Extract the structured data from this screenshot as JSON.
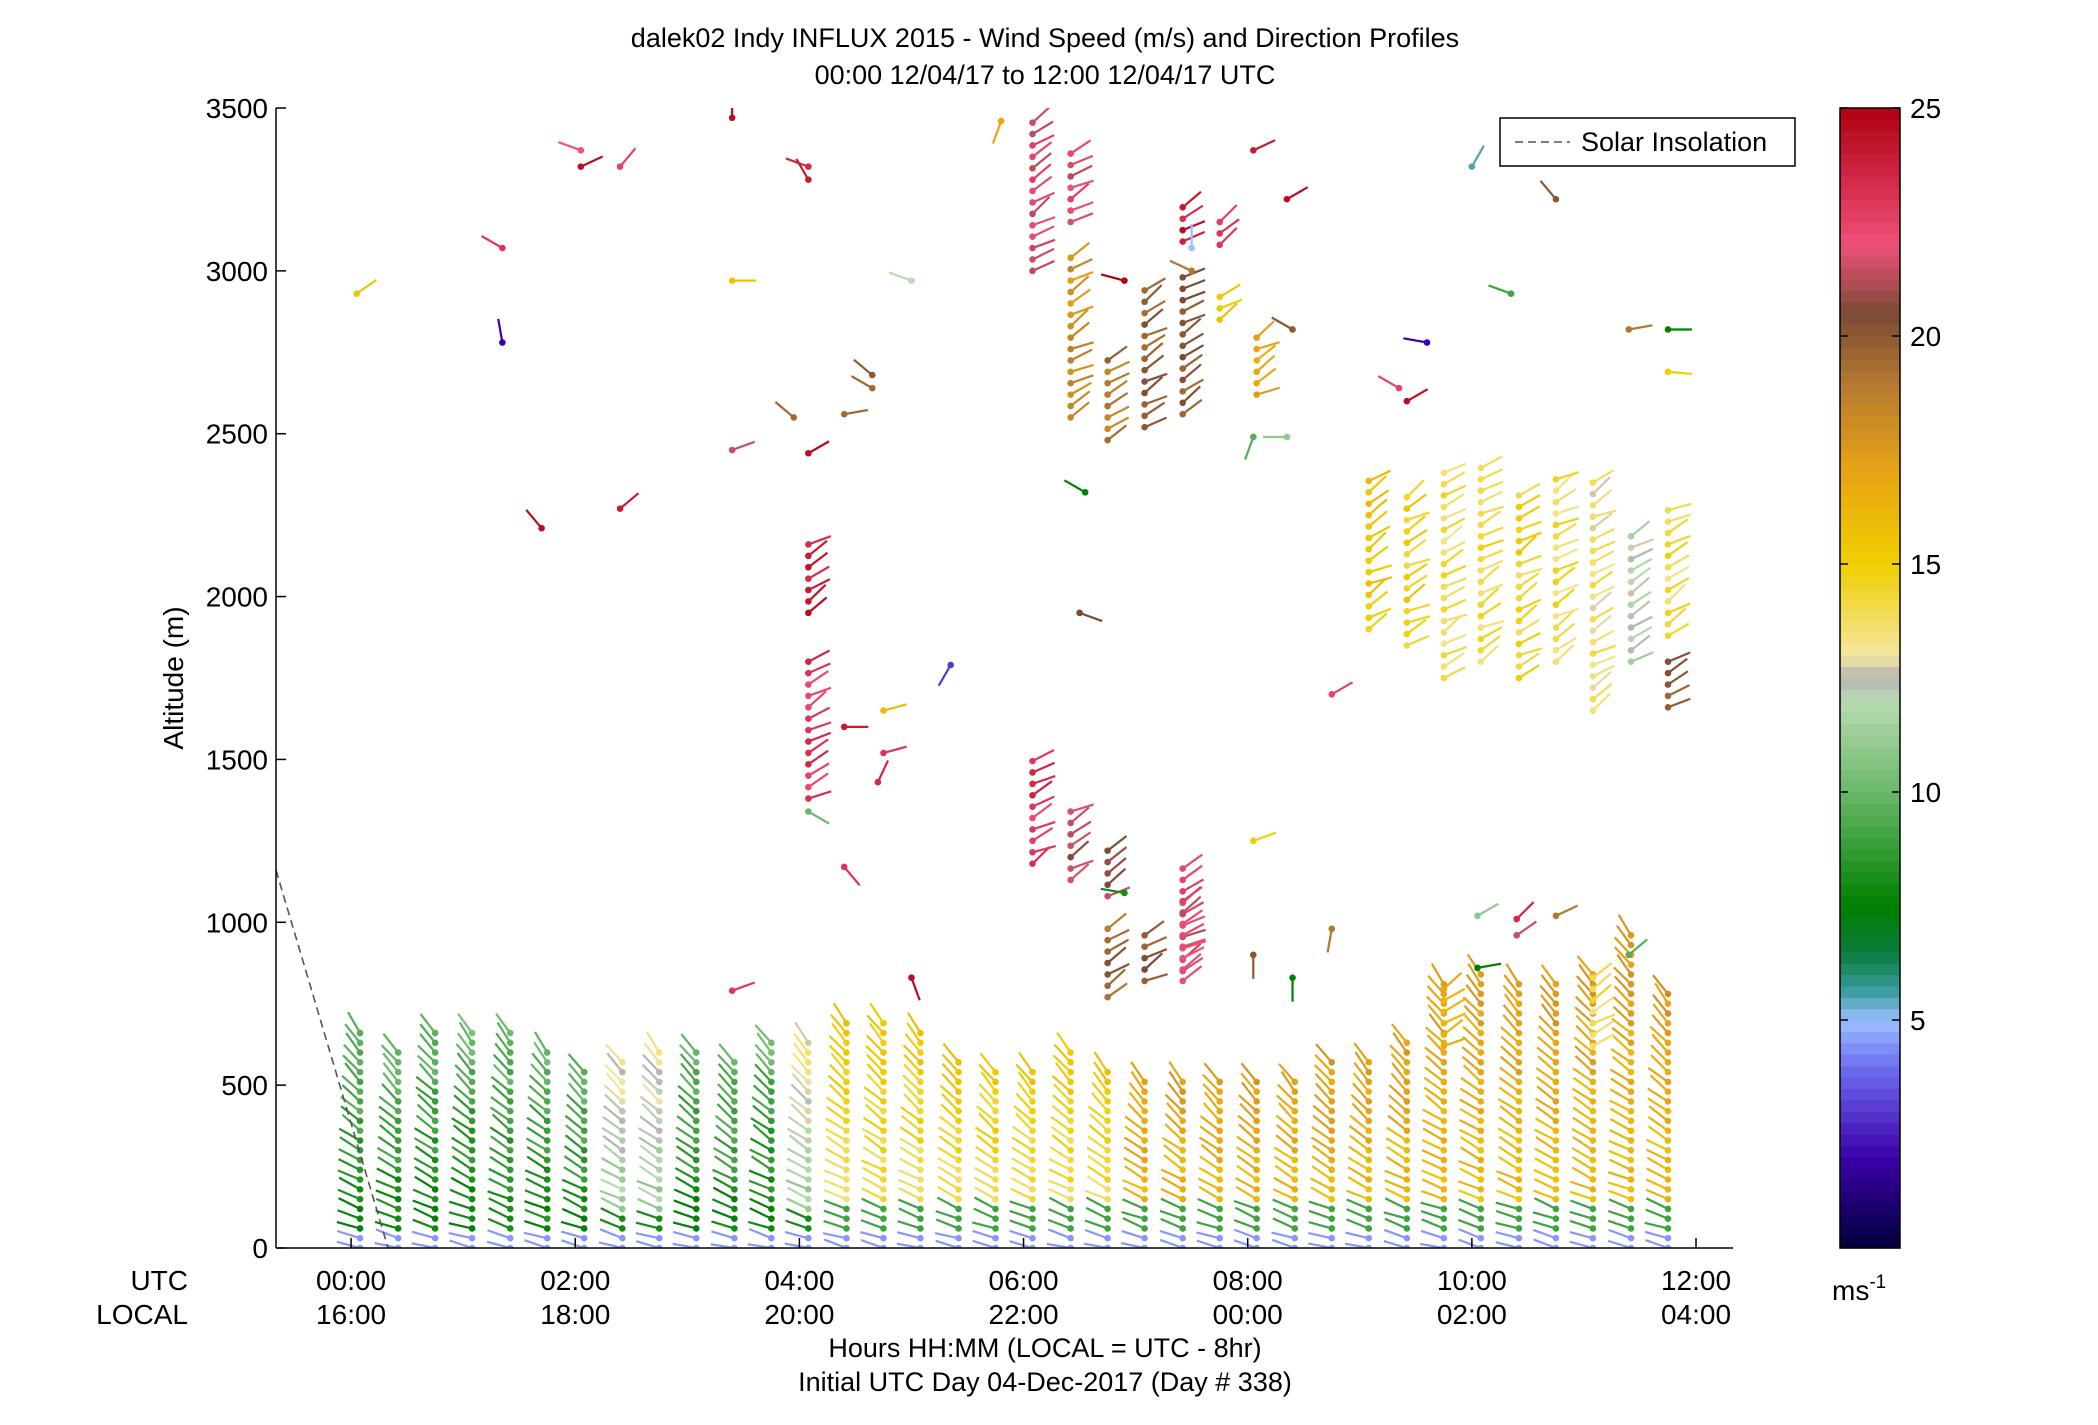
{
  "chart_data": {
    "type": "scatter",
    "title": "dalek02 Indy INFLUX 2015 - Wind Speed (m/s) and Direction Profiles",
    "subtitle": "00:00 12/04/17 to 12:00 12/04/17  UTC",
    "ylabel": "Altitude (m)",
    "xlabel": "Hours HH:MM  (LOCAL = UTC - 8hr)",
    "xlabel2": "Initial UTC Day 04-Dec-2017 (Day # 338)",
    "ylim": [
      0,
      3500
    ],
    "xlim": [
      -0.67,
      12.33
    ],
    "yticks": [
      0,
      500,
      1000,
      1500,
      2000,
      2500,
      3000,
      3500
    ],
    "x_row_labels": {
      "utc": "UTC",
      "local": "LOCAL"
    },
    "xticks": [
      {
        "x": 0,
        "utc": "00:00",
        "local": "16:00"
      },
      {
        "x": 2,
        "utc": "02:00",
        "local": "18:00"
      },
      {
        "x": 4,
        "utc": "04:00",
        "local": "20:00"
      },
      {
        "x": 6,
        "utc": "06:00",
        "local": "22:00"
      },
      {
        "x": 8,
        "utc": "08:00",
        "local": "00:00"
      },
      {
        "x": 10,
        "utc": "10:00",
        "local": "02:00"
      },
      {
        "x": 12,
        "utc": "12:00",
        "local": "04:00"
      }
    ],
    "legend": {
      "label": "Solar Insolation",
      "placement": "top-right"
    },
    "colorbar": {
      "unit_label": "ms",
      "unit_exp": "-1",
      "range": [
        0,
        25
      ],
      "ticks": [
        5,
        10,
        15,
        20,
        25
      ],
      "stops": [
        {
          "v": 0,
          "c": "#00003a"
        },
        {
          "v": 2,
          "c": "#3c00aa"
        },
        {
          "v": 4,
          "c": "#6f6ff0"
        },
        {
          "v": 5,
          "c": "#9cc0ff"
        },
        {
          "v": 5.6,
          "c": "#3d9fa5"
        },
        {
          "v": 6.5,
          "c": "#0a7a3a"
        },
        {
          "v": 7.5,
          "c": "#008000"
        },
        {
          "v": 10,
          "c": "#6ab86a"
        },
        {
          "v": 12,
          "c": "#b8dab0"
        },
        {
          "v": 12.5,
          "c": "#b4b4b4"
        },
        {
          "v": 13,
          "c": "#f4e6a0"
        },
        {
          "v": 15,
          "c": "#f0cf00"
        },
        {
          "v": 17,
          "c": "#e9a514"
        },
        {
          "v": 19,
          "c": "#b37830"
        },
        {
          "v": 20.5,
          "c": "#7a4a35"
        },
        {
          "v": 22,
          "c": "#f0507a"
        },
        {
          "v": 25,
          "c": "#b00010"
        }
      ]
    },
    "solar_insolation": {
      "x": [
        -0.67,
        0.33
      ],
      "y": [
        1160,
        0
      ]
    },
    "profiles_low": [
      {
        "x": 0.08,
        "top": 660,
        "wind": "green"
      },
      {
        "x": 0.42,
        "top": 620,
        "wind": "green"
      },
      {
        "x": 0.75,
        "top": 660,
        "wind": "green"
      },
      {
        "x": 1.08,
        "top": 660,
        "wind": "green"
      },
      {
        "x": 1.42,
        "top": 660,
        "wind": "green"
      },
      {
        "x": 1.75,
        "top": 620,
        "wind": "green"
      },
      {
        "x": 2.08,
        "top": 560,
        "wind": "green"
      },
      {
        "x": 2.42,
        "top": 590,
        "wind": "mixed"
      },
      {
        "x": 2.75,
        "top": 620,
        "wind": "mixed"
      },
      {
        "x": 3.08,
        "top": 620,
        "wind": "green"
      },
      {
        "x": 3.42,
        "top": 590,
        "wind": "green"
      },
      {
        "x": 3.75,
        "top": 650,
        "wind": "green"
      },
      {
        "x": 4.08,
        "top": 650,
        "wind": "mixed"
      },
      {
        "x": 4.42,
        "top": 690,
        "wind": "yellow"
      },
      {
        "x": 4.75,
        "top": 690,
        "wind": "yellow"
      },
      {
        "x": 5.08,
        "top": 660,
        "wind": "yellow"
      },
      {
        "x": 5.42,
        "top": 590,
        "wind": "yellow"
      },
      {
        "x": 5.75,
        "top": 560,
        "wind": "yellow"
      },
      {
        "x": 6.08,
        "top": 560,
        "wind": "yellow"
      },
      {
        "x": 6.42,
        "top": 620,
        "wind": "yellow"
      },
      {
        "x": 6.75,
        "top": 560,
        "wind": "yellow"
      },
      {
        "x": 7.08,
        "top": 530,
        "wind": "orange"
      },
      {
        "x": 7.42,
        "top": 530,
        "wind": "orange"
      },
      {
        "x": 7.75,
        "top": 530,
        "wind": "orange"
      },
      {
        "x": 8.08,
        "top": 530,
        "wind": "orange"
      },
      {
        "x": 8.42,
        "top": 530,
        "wind": "orange"
      },
      {
        "x": 8.75,
        "top": 590,
        "wind": "orange"
      },
      {
        "x": 9.08,
        "top": 590,
        "wind": "orange"
      },
      {
        "x": 9.42,
        "top": 650,
        "wind": "orange"
      },
      {
        "x": 9.75,
        "top": 820,
        "wind": "orange"
      },
      {
        "x": 10.08,
        "top": 850,
        "wind": "orange"
      },
      {
        "x": 10.42,
        "top": 820,
        "wind": "orange"
      },
      {
        "x": 10.75,
        "top": 820,
        "wind": "orange"
      },
      {
        "x": 11.08,
        "top": 850,
        "wind": "orange"
      },
      {
        "x": 11.42,
        "top": 970,
        "wind": "orange"
      },
      {
        "x": 11.75,
        "top": 790,
        "wind": "orange"
      }
    ],
    "profiles_upper": [
      {
        "x": 4.08,
        "bottom": 1950,
        "top": 2180,
        "speed": 24
      },
      {
        "x": 4.08,
        "bottom": 1380,
        "top": 1830,
        "speed": 23
      },
      {
        "x": 6.08,
        "bottom": 1180,
        "top": 1520,
        "speed": 23
      },
      {
        "x": 6.42,
        "bottom": 1130,
        "top": 1340,
        "speed": 21
      },
      {
        "x": 6.75,
        "bottom": 1080,
        "top": 1250,
        "speed": 21
      },
      {
        "x": 7.42,
        "bottom": 850,
        "top": 1180,
        "speed": 22
      },
      {
        "x": 6.08,
        "bottom": 3000,
        "top": 3480,
        "speed": 22
      },
      {
        "x": 6.42,
        "bottom": 3150,
        "top": 3370,
        "speed": 22
      },
      {
        "x": 6.42,
        "bottom": 2550,
        "top": 3070,
        "speed": 18
      },
      {
        "x": 6.75,
        "bottom": 2480,
        "top": 2750,
        "speed": 19
      },
      {
        "x": 7.08,
        "bottom": 2520,
        "top": 2940,
        "speed": 20
      },
      {
        "x": 7.42,
        "bottom": 2560,
        "top": 2980,
        "speed": 20
      },
      {
        "x": 7.42,
        "bottom": 3090,
        "top": 3220,
        "speed": 24
      },
      {
        "x": 7.75,
        "bottom": 2850,
        "top": 2930,
        "speed": 15
      },
      {
        "x": 7.75,
        "bottom": 3080,
        "top": 3160,
        "speed": 23
      },
      {
        "x": 8.08,
        "bottom": 2620,
        "top": 2820,
        "speed": 17
      },
      {
        "x": 9.08,
        "bottom": 1900,
        "top": 2380,
        "speed": 15.5
      },
      {
        "x": 9.42,
        "bottom": 1850,
        "top": 2330,
        "speed": 15
      },
      {
        "x": 9.75,
        "bottom": 1750,
        "top": 2400,
        "speed": 14
      },
      {
        "x": 10.08,
        "bottom": 1800,
        "top": 2400,
        "speed": 14
      },
      {
        "x": 10.42,
        "bottom": 1750,
        "top": 2330,
        "speed": 14.5
      },
      {
        "x": 10.75,
        "bottom": 1800,
        "top": 2360,
        "speed": 14
      },
      {
        "x": 11.08,
        "bottom": 1650,
        "top": 2380,
        "speed": 13.5
      },
      {
        "x": 11.42,
        "bottom": 1800,
        "top": 2210,
        "speed": 12
      },
      {
        "x": 11.75,
        "bottom": 1880,
        "top": 2270,
        "speed": 14
      },
      {
        "x": 11.75,
        "bottom": 1660,
        "top": 1830,
        "speed": 20
      },
      {
        "x": 6.75,
        "bottom": 770,
        "top": 1000,
        "speed": 19.5
      },
      {
        "x": 7.08,
        "bottom": 820,
        "top": 980,
        "speed": 20
      },
      {
        "x": 7.42,
        "bottom": 820,
        "top": 1080,
        "speed": 22
      },
      {
        "x": 9.75,
        "bottom": 620,
        "top": 800,
        "speed": 16
      },
      {
        "x": 11.08,
        "bottom": 620,
        "top": 860,
        "speed": 14
      }
    ],
    "scattered_points": [
      {
        "x": 0.05,
        "y": 2930,
        "speed": 15.5,
        "dir": 55
      },
      {
        "x": 1.35,
        "y": 3070,
        "speed": 23,
        "dir": -60
      },
      {
        "x": 1.35,
        "y": 2780,
        "speed": 2,
        "dir": -10
      },
      {
        "x": 1.7,
        "y": 2210,
        "speed": 24.5,
        "dir": -40
      },
      {
        "x": 2.05,
        "y": 3320,
        "speed": 24.5,
        "dir": 65
      },
      {
        "x": 2.05,
        "y": 3370,
        "speed": 22,
        "dir": -70
      },
      {
        "x": 2.4,
        "y": 3320,
        "speed": 22.5,
        "dir": 40
      },
      {
        "x": 2.4,
        "y": 2270,
        "speed": 24,
        "dir": 50
      },
      {
        "x": 3.4,
        "y": 2970,
        "speed": 15.5,
        "dir": 90
      },
      {
        "x": 3.4,
        "y": 2450,
        "speed": 21.5,
        "dir": 70
      },
      {
        "x": 3.4,
        "y": 3470,
        "speed": 24.5,
        "dir": 0
      },
      {
        "x": 3.4,
        "y": 790,
        "speed": 23,
        "dir": 70
      },
      {
        "x": 4.08,
        "y": 2440,
        "speed": 24.5,
        "dir": 60
      },
      {
        "x": 3.95,
        "y": 2550,
        "speed": 19.5,
        "dir": -50
      },
      {
        "x": 4.08,
        "y": 3320,
        "speed": 23.5,
        "dir": -70
      },
      {
        "x": 4.08,
        "y": 3280,
        "speed": 24,
        "dir": -30
      },
      {
        "x": 4.4,
        "y": 2560,
        "speed": 19.5,
        "dir": 80
      },
      {
        "x": 4.65,
        "y": 2680,
        "speed": 20,
        "dir": -50
      },
      {
        "x": 4.65,
        "y": 2640,
        "speed": 19.5,
        "dir": -60
      },
      {
        "x": 5.0,
        "y": 2970,
        "speed": 12,
        "dir": -70
      },
      {
        "x": 4.08,
        "y": 1340,
        "speed": 10,
        "dir": 120
      },
      {
        "x": 4.4,
        "y": 1170,
        "speed": 23,
        "dir": 140
      },
      {
        "x": 4.4,
        "y": 1600,
        "speed": 24,
        "dir": 90
      },
      {
        "x": 4.75,
        "y": 1650,
        "speed": 16,
        "dir": 75
      },
      {
        "x": 4.75,
        "y": 1520,
        "speed": 23,
        "dir": 75
      },
      {
        "x": 4.7,
        "y": 1430,
        "speed": 23.5,
        "dir": 25
      },
      {
        "x": 5.35,
        "y": 1790,
        "speed": 3,
        "dir": 210
      },
      {
        "x": 5.0,
        "y": 830,
        "speed": 24.5,
        "dir": 160
      },
      {
        "x": 5.8,
        "y": 3460,
        "speed": 17,
        "dir": 200
      },
      {
        "x": 6.5,
        "y": 1950,
        "speed": 20.5,
        "dir": 110
      },
      {
        "x": 6.55,
        "y": 2320,
        "speed": 7.5,
        "dir": -60
      },
      {
        "x": 6.9,
        "y": 2970,
        "speed": 25,
        "dir": -75
      },
      {
        "x": 6.9,
        "y": 1090,
        "speed": 8,
        "dir": -80
      },
      {
        "x": 7.5,
        "y": 3070,
        "speed": 5,
        "dir": 0
      },
      {
        "x": 7.5,
        "y": 3000,
        "speed": 19,
        "dir": -65
      },
      {
        "x": 8.05,
        "y": 3370,
        "speed": 24,
        "dir": 65
      },
      {
        "x": 8.35,
        "y": 3220,
        "speed": 24.5,
        "dir": 60
      },
      {
        "x": 8.05,
        "y": 2490,
        "speed": 9.5,
        "dir": -160
      },
      {
        "x": 8.35,
        "y": 2490,
        "speed": 11,
        "dir": -90
      },
      {
        "x": 8.4,
        "y": 2820,
        "speed": 20,
        "dir": -60
      },
      {
        "x": 8.05,
        "y": 1250,
        "speed": 15,
        "dir": 70
      },
      {
        "x": 8.05,
        "y": 900,
        "speed": 20,
        "dir": 180
      },
      {
        "x": 8.4,
        "y": 830,
        "speed": 7.5,
        "dir": -180
      },
      {
        "x": 8.75,
        "y": 980,
        "speed": 19,
        "dir": -170
      },
      {
        "x": 8.75,
        "y": 1700,
        "speed": 22.5,
        "dir": 60
      },
      {
        "x": 9.35,
        "y": 2640,
        "speed": 22.5,
        "dir": -60
      },
      {
        "x": 9.42,
        "y": 2600,
        "speed": 24.5,
        "dir": 60
      },
      {
        "x": 9.6,
        "y": 2780,
        "speed": 2,
        "dir": -80
      },
      {
        "x": 10.0,
        "y": 3320,
        "speed": 5.5,
        "dir": 30
      },
      {
        "x": 10.05,
        "y": 1020,
        "speed": 11,
        "dir": 60
      },
      {
        "x": 10.05,
        "y": 860,
        "speed": 7.5,
        "dir": 80
      },
      {
        "x": 10.35,
        "y": 2930,
        "speed": 9,
        "dir": -70
      },
      {
        "x": 10.4,
        "y": 1010,
        "speed": 23.5,
        "dir": 45
      },
      {
        "x": 10.4,
        "y": 960,
        "speed": 21.5,
        "dir": 55
      },
      {
        "x": 10.75,
        "y": 3220,
        "speed": 20,
        "dir": -40
      },
      {
        "x": 10.75,
        "y": 1020,
        "speed": 19,
        "dir": 65
      },
      {
        "x": 11.4,
        "y": 900,
        "speed": 9.5,
        "dir": 50
      },
      {
        "x": 11.4,
        "y": 2820,
        "speed": 19,
        "dir": 80
      },
      {
        "x": 11.75,
        "y": 2820,
        "speed": 7.5,
        "dir": 90
      },
      {
        "x": 11.75,
        "y": 2690,
        "speed": 15,
        "dir": 95
      }
    ]
  }
}
